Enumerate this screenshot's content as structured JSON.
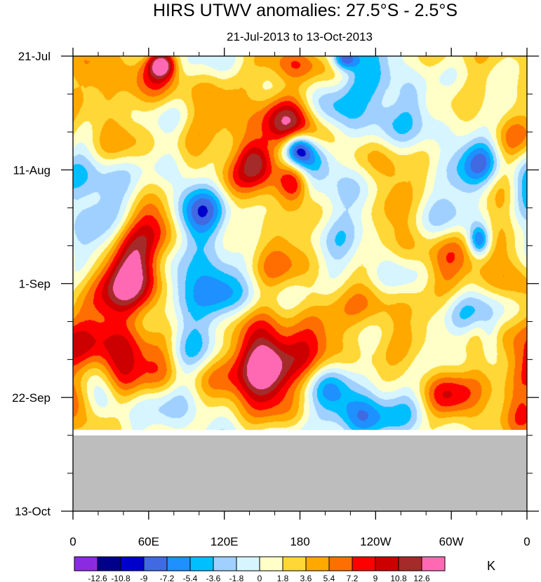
{
  "chart_data": {
    "type": "heatmap",
    "title": "HIRS UTWV anomalies: 27.5°S - 2.5°S",
    "subtitle": "21-Jul-2013 to 13-Oct-2013",
    "x_axis": {
      "ticks": [
        "0",
        "60E",
        "120E",
        "180",
        "120W",
        "60W",
        "0"
      ],
      "range_deg": [
        0,
        360
      ]
    },
    "y_axis": {
      "ticks": [
        "21-Jul",
        "11-Aug",
        "1-Sep",
        "22-Sep",
        "13-Oct"
      ],
      "range_days": [
        0,
        84
      ]
    },
    "data_end_day": 69,
    "missing_color": "#bdbdbd",
    "colorbar": {
      "unit": "K",
      "levels": [
        "-12.6",
        "-10.8",
        "-9",
        "-7.2",
        "-5.4",
        "-3.6",
        "-1.8",
        "0",
        "1.8",
        "3.6",
        "5.4",
        "7.2",
        "9",
        "10.8",
        "12.6"
      ],
      "colors": [
        "#8a2be2",
        "#00008b",
        "#0000cd",
        "#4169e1",
        "#1e90ff",
        "#00bfff",
        "#a0d0ff",
        "#d6f5ff",
        "#ffffc8",
        "#ffd837",
        "#ffa800",
        "#ff6e00",
        "#ff0000",
        "#cd0000",
        "#a52a2a",
        "#ff69b4"
      ]
    },
    "features": [
      {
        "lon": 70,
        "day": 1.5,
        "value": 11,
        "rlon": 7,
        "rday": 1.6
      },
      {
        "lon": 60,
        "day": 3,
        "value": 6,
        "rlon": 18,
        "rday": 3
      },
      {
        "lon": 172,
        "day": 1,
        "value": 6.5,
        "rlon": 18,
        "rday": 2.5
      },
      {
        "lon": 215,
        "day": 0.5,
        "value": -10,
        "rlon": 7,
        "rday": 1.5
      },
      {
        "lon": 238,
        "day": 3,
        "value": -4,
        "rlon": 14,
        "rday": 3
      },
      {
        "lon": 245,
        "day": 10,
        "value": -4,
        "rlon": 13,
        "rday": 4
      },
      {
        "lon": 270,
        "day": 8,
        "value": -3,
        "rlon": 9,
        "rday": 3
      },
      {
        "lon": 300,
        "day": 2,
        "value": 3,
        "rlon": 25,
        "rday": 4
      },
      {
        "lon": 12,
        "day": 5,
        "value": 4,
        "rlon": 12,
        "rday": 6
      },
      {
        "lon": 35,
        "day": 12,
        "value": 3.5,
        "rlon": 14,
        "rday": 7
      },
      {
        "lon": 165,
        "day": 10,
        "value": 9,
        "rlon": 18,
        "rday": 3.5
      },
      {
        "lon": 188,
        "day": 14,
        "value": 8,
        "rlon": 20,
        "rday": 3
      },
      {
        "lon": 145,
        "day": 19,
        "value": 10,
        "rlon": 10,
        "rday": 3
      },
      {
        "lon": 130,
        "day": 21,
        "value": 5,
        "rlon": 16,
        "rday": 5
      },
      {
        "lon": 175,
        "day": 23,
        "value": 11,
        "rlon": 9,
        "rday": 3
      },
      {
        "lon": 200,
        "day": 11,
        "value": -6,
        "rlon": 18,
        "rday": 3
      },
      {
        "lon": 178,
        "day": 17,
        "value": -11,
        "rlon": 8,
        "rday": 2.2
      },
      {
        "lon": 190,
        "day": 19,
        "value": -5,
        "rlon": 16,
        "rday": 3
      },
      {
        "lon": 92,
        "day": 15,
        "value": 3.5,
        "rlon": 18,
        "rday": 5
      },
      {
        "lon": 100,
        "day": 30,
        "value": -7.5,
        "rlon": 18,
        "rday": 4.5
      },
      {
        "lon": 82,
        "day": 22,
        "value": -4,
        "rlon": 14,
        "rday": 4
      },
      {
        "lon": 70,
        "day": 28,
        "value": 6,
        "rlon": 14,
        "rday": 5
      },
      {
        "lon": 12,
        "day": 27,
        "value": -4,
        "rlon": 10,
        "rday": 6
      },
      {
        "lon": 30,
        "day": 26,
        "value": -3,
        "rlon": 12,
        "rday": 5
      },
      {
        "lon": 48,
        "day": 40,
        "value": 8.5,
        "rlon": 16,
        "rday": 5
      },
      {
        "lon": 30,
        "day": 48,
        "value": 5.5,
        "rlon": 18,
        "rday": 6
      },
      {
        "lon": 55,
        "day": 38,
        "value": 5,
        "rlon": 22,
        "rday": 6
      },
      {
        "lon": 10,
        "day": 55,
        "value": 4,
        "rlon": 15,
        "rday": 7
      },
      {
        "lon": 85,
        "day": 43,
        "value": -5.5,
        "rlon": 12,
        "rday": 4
      },
      {
        "lon": 110,
        "day": 43,
        "value": -4.5,
        "rlon": 12,
        "rday": 4
      },
      {
        "lon": 125,
        "day": 40,
        "value": -3,
        "rlon": 16,
        "rday": 5
      },
      {
        "lon": 145,
        "day": 36,
        "value": 4,
        "rlon": 22,
        "rday": 5
      },
      {
        "lon": 178,
        "day": 34,
        "value": 3.5,
        "rlon": 18,
        "rday": 5
      },
      {
        "lon": 200,
        "day": 30,
        "value": -3,
        "rlon": 16,
        "rday": 4
      },
      {
        "lon": 255,
        "day": 32,
        "value": -2.5,
        "rlon": 20,
        "rday": 6
      },
      {
        "lon": 250,
        "day": 24,
        "value": 6,
        "rlon": 12,
        "rday": 6
      },
      {
        "lon": 265,
        "day": 33,
        "value": 4,
        "rlon": 14,
        "rday": 5
      },
      {
        "lon": 295,
        "day": 38,
        "value": 5,
        "rlon": 14,
        "rday": 7
      },
      {
        "lon": 315,
        "day": 23,
        "value": -4,
        "rlon": 12,
        "rday": 4
      },
      {
        "lon": 325,
        "day": 19,
        "value": -5,
        "rlon": 10,
        "rday": 3
      },
      {
        "lon": 345,
        "day": 15,
        "value": 4,
        "rlon": 14,
        "rday": 6
      },
      {
        "lon": 340,
        "day": 34,
        "value": 4.5,
        "rlon": 16,
        "rday": 6
      },
      {
        "lon": 350,
        "day": 52,
        "value": 4,
        "rlon": 12,
        "rday": 7
      },
      {
        "lon": 322,
        "day": 34,
        "value": -10,
        "rlon": 6,
        "rday": 2
      },
      {
        "lon": 300,
        "day": 31,
        "value": -3,
        "rlon": 14,
        "rday": 4
      },
      {
        "lon": 332,
        "day": 46,
        "value": -3.5,
        "rlon": 14,
        "rday": 3
      },
      {
        "lon": 330,
        "day": 52,
        "value": -4.5,
        "rlon": 6,
        "rday": 3
      },
      {
        "lon": 306,
        "day": 48,
        "value": -3,
        "rlon": 12,
        "rday": 3
      },
      {
        "lon": 200,
        "day": 50,
        "value": 4.5,
        "rlon": 26,
        "rday": 4
      },
      {
        "lon": 238,
        "day": 46,
        "value": 4,
        "rlon": 12,
        "rday": 5
      },
      {
        "lon": 160,
        "day": 56,
        "value": 7.5,
        "rlon": 26,
        "rday": 6
      },
      {
        "lon": 152,
        "day": 58,
        "value": 9.5,
        "rlon": 12,
        "rday": 4
      },
      {
        "lon": 125,
        "day": 60,
        "value": 5,
        "rlon": 22,
        "rday": 5
      },
      {
        "lon": 40,
        "day": 57,
        "value": 7,
        "rlon": 14,
        "rday": 5
      },
      {
        "lon": 70,
        "day": 57,
        "value": 5,
        "rlon": 12,
        "rday": 4
      },
      {
        "lon": 25,
        "day": 63,
        "value": -4.5,
        "rlon": 10,
        "rday": 3
      },
      {
        "lon": 100,
        "day": 53,
        "value": -3,
        "rlon": 16,
        "rday": 4
      },
      {
        "lon": 95,
        "day": 63,
        "value": -2.5,
        "rlon": 20,
        "rday": 4
      },
      {
        "lon": 225,
        "day": 66,
        "value": -7,
        "rlon": 16,
        "rday": 3
      },
      {
        "lon": 205,
        "day": 61,
        "value": -4,
        "rlon": 12,
        "rday": 3
      },
      {
        "lon": 268,
        "day": 64,
        "value": -3,
        "rlon": 14,
        "rday": 3
      },
      {
        "lon": 268,
        "day": 55,
        "value": 4,
        "rlon": 12,
        "rday": 5
      },
      {
        "lon": 300,
        "day": 63,
        "value": 7,
        "rlon": 16,
        "rday": 4
      },
      {
        "lon": 330,
        "day": 60,
        "value": 3.5,
        "rlon": 16,
        "rday": 5
      },
      {
        "lon": 355,
        "day": 66,
        "value": 3,
        "rlon": 10,
        "rday": 4
      },
      {
        "lon": 10,
        "day": 66,
        "value": 3,
        "rlon": 10,
        "rday": 3
      },
      {
        "lon": 320,
        "day": 40,
        "value": 3,
        "rlon": 12,
        "rday": 5
      },
      {
        "lon": 110,
        "day": 7,
        "value": 3,
        "rlon": 16,
        "rday": 5
      },
      {
        "lon": 355,
        "day": 24,
        "value": -3.5,
        "rlon": 8,
        "rday": 4
      },
      {
        "lon": 5,
        "day": 38,
        "value": -2.5,
        "rlon": 8,
        "rday": 4
      }
    ]
  }
}
